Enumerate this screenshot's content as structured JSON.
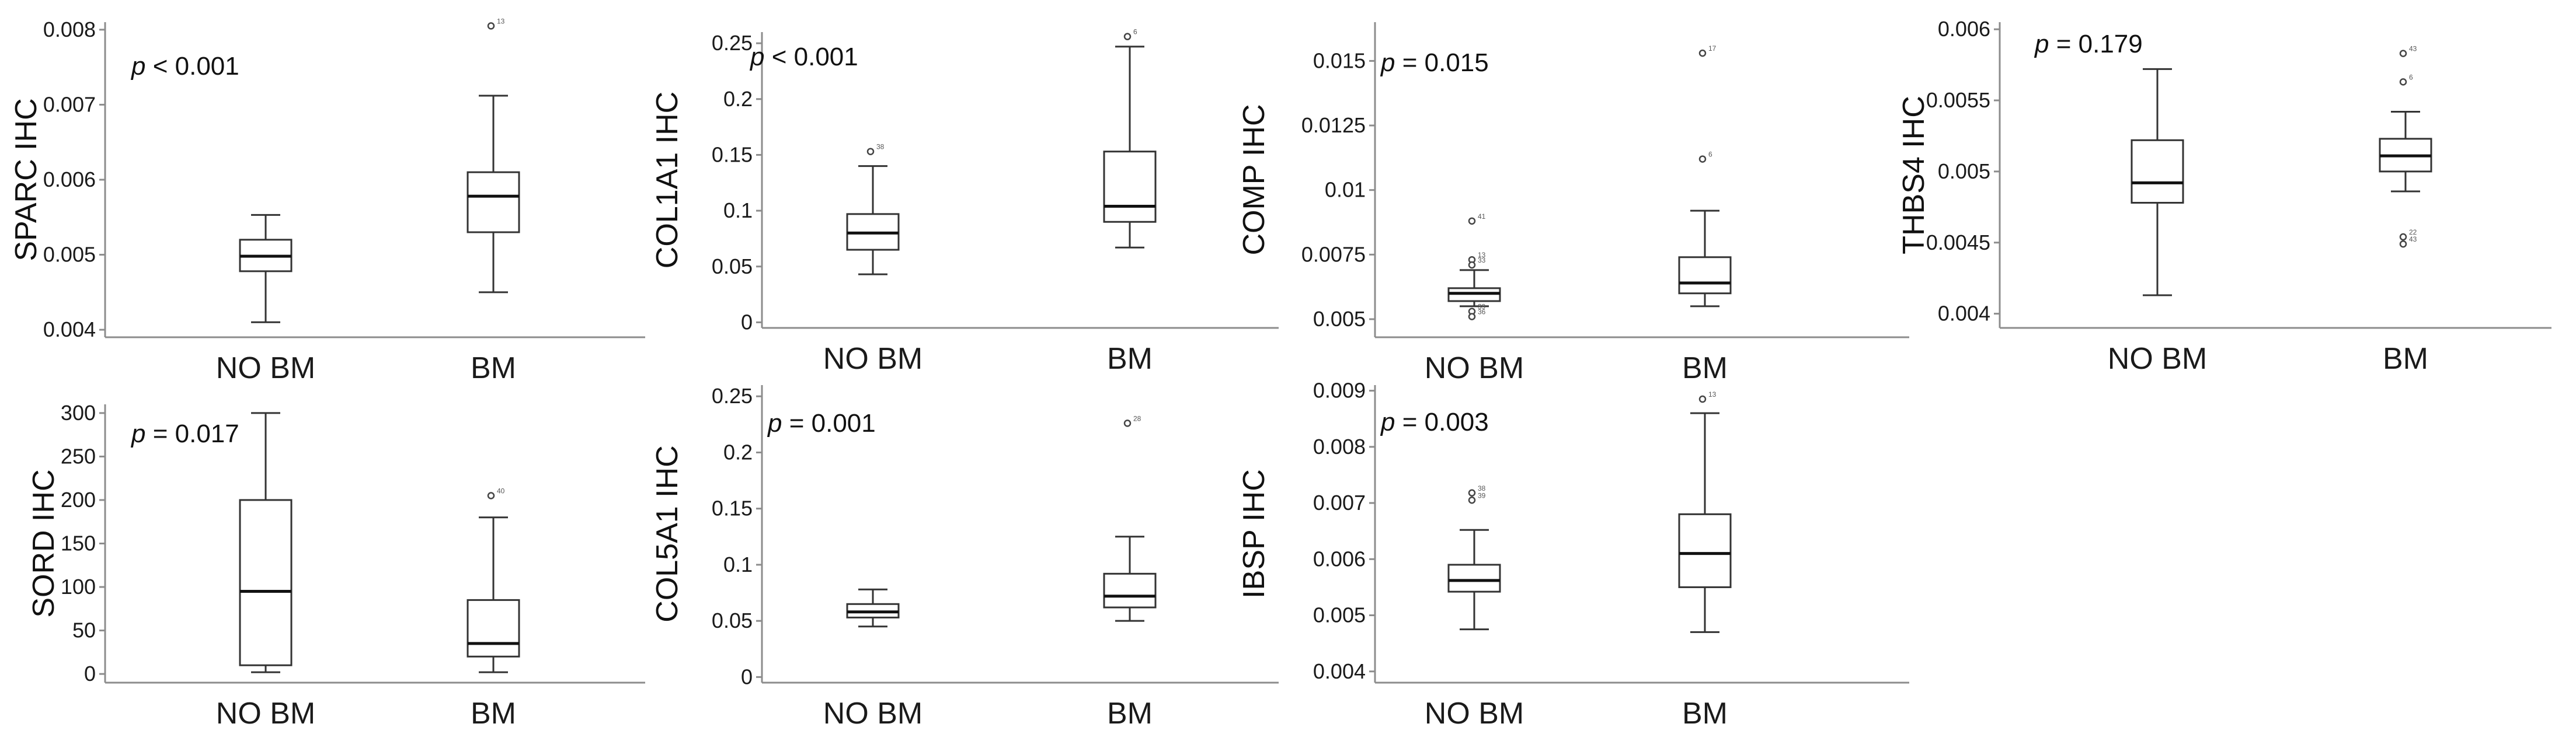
{
  "chart_data": [
    {
      "type": "box",
      "ylabel": "SPARC IHC",
      "p_value": "< 0.001",
      "categories": [
        "NO BM",
        "BM"
      ],
      "yticks": [
        "0.004",
        "0.005",
        "0.006",
        "0.007",
        "0.008"
      ],
      "ylim": [
        0.0039,
        0.0081
      ],
      "boxes": [
        {
          "category": "NO BM",
          "min": 0.0041,
          "q1": 0.00478,
          "median": 0.00498,
          "q3": 0.0052,
          "max": 0.00553,
          "outliers": []
        },
        {
          "category": "BM",
          "min": 0.0045,
          "q1": 0.0053,
          "median": 0.00578,
          "q3": 0.0061,
          "max": 0.00712,
          "outliers": [
            {
              "value": 0.00805,
              "id": "13"
            }
          ]
        }
      ]
    },
    {
      "type": "box",
      "ylabel": "COL1A1 IHC",
      "p_value": "< 0.001",
      "categories": [
        "NO BM",
        "BM"
      ],
      "yticks": [
        "0",
        "0.05",
        "0.1",
        "0.15",
        "0.2",
        "0.25"
      ],
      "ylim": [
        -0.005,
        0.26
      ],
      "boxes": [
        {
          "category": "NO BM",
          "min": 0.043,
          "q1": 0.065,
          "median": 0.08,
          "q3": 0.097,
          "max": 0.14,
          "outliers": [
            {
              "value": 0.153,
              "id": "38"
            }
          ]
        },
        {
          "category": "BM",
          "min": 0.067,
          "q1": 0.09,
          "median": 0.104,
          "q3": 0.153,
          "max": 0.247,
          "outliers": [
            {
              "value": 0.256,
              "id": "6"
            }
          ]
        }
      ]
    },
    {
      "type": "box",
      "ylabel": "COMP IHC",
      "p_value": "= 0.015",
      "categories": [
        "NO BM",
        "BM"
      ],
      "yticks": [
        "0.005",
        "0.0075",
        "0.01",
        "0.0125",
        "0.015"
      ],
      "ylim": [
        0.0043,
        0.0165
      ],
      "boxes": [
        {
          "category": "NO BM",
          "min": 0.0055,
          "q1": 0.0057,
          "median": 0.006,
          "q3": 0.0062,
          "max": 0.0069,
          "outliers": [
            {
              "value": 0.0088,
              "id": "41"
            },
            {
              "value": 0.0073,
              "id": "13"
            },
            {
              "value": 0.0071,
              "id": "33"
            },
            {
              "value": 0.0053,
              "id": "39"
            },
            {
              "value": 0.0051,
              "id": "36"
            }
          ]
        },
        {
          "category": "BM",
          "min": 0.0055,
          "q1": 0.006,
          "median": 0.0064,
          "q3": 0.0074,
          "max": 0.0092,
          "outliers": [
            {
              "value": 0.0153,
              "id": "17"
            },
            {
              "value": 0.0112,
              "id": "6"
            }
          ]
        }
      ]
    },
    {
      "type": "box",
      "ylabel": "THBS4 IHC",
      "p_value": "= 0.179",
      "categories": [
        "NO BM",
        "BM"
      ],
      "yticks": [
        "0.004",
        "0.0045",
        "0.005",
        "0.0055",
        "0.006"
      ],
      "ylim": [
        0.0039,
        0.00605
      ],
      "boxes": [
        {
          "category": "NO BM",
          "min": 0.00413,
          "q1": 0.00478,
          "median": 0.00492,
          "q3": 0.00522,
          "max": 0.00572,
          "outliers": []
        },
        {
          "category": "BM",
          "min": 0.00486,
          "q1": 0.005,
          "median": 0.00511,
          "q3": 0.00523,
          "max": 0.00542,
          "outliers": [
            {
              "value": 0.00583,
              "id": "43"
            },
            {
              "value": 0.00563,
              "id": "6"
            },
            {
              "value": 0.00454,
              "id": "22"
            },
            {
              "value": 0.00449,
              "id": "43"
            }
          ]
        }
      ]
    },
    {
      "type": "box",
      "ylabel": "SORD IHC",
      "p_value": "= 0.017",
      "categories": [
        "NO BM",
        "BM"
      ],
      "yticks": [
        "0",
        "50",
        "100",
        "150",
        "200",
        "250",
        "300"
      ],
      "ylim": [
        -10,
        310
      ],
      "boxes": [
        {
          "category": "NO BM",
          "min": 2,
          "q1": 10,
          "median": 95,
          "q3": 200,
          "max": 300,
          "outliers": []
        },
        {
          "category": "BM",
          "min": 2,
          "q1": 20,
          "median": 35,
          "q3": 85,
          "max": 180,
          "outliers": [
            {
              "value": 205,
              "id": "40"
            }
          ]
        }
      ]
    },
    {
      "type": "box",
      "ylabel": "COL5A1 IHC",
      "p_value": "= 0.001",
      "categories": [
        "NO BM",
        "BM"
      ],
      "yticks": [
        "0",
        "0.05",
        "0.1",
        "0.15",
        "0.2",
        "0.25"
      ],
      "ylim": [
        -0.005,
        0.26
      ],
      "boxes": [
        {
          "category": "NO BM",
          "min": 0.045,
          "q1": 0.053,
          "median": 0.058,
          "q3": 0.065,
          "max": 0.078,
          "outliers": []
        },
        {
          "category": "BM",
          "min": 0.05,
          "q1": 0.062,
          "median": 0.072,
          "q3": 0.092,
          "max": 0.125,
          "outliers": [
            {
              "value": 0.226,
              "id": "28"
            }
          ]
        }
      ]
    },
    {
      "type": "box",
      "ylabel": "IBSP IHC",
      "p_value": "= 0.003",
      "categories": [
        "NO BM",
        "BM"
      ],
      "yticks": [
        "0.004",
        "0.005",
        "0.006",
        "0.007",
        "0.008",
        "0.009"
      ],
      "ylim": [
        0.0038,
        0.0091
      ],
      "boxes": [
        {
          "category": "NO BM",
          "min": 0.00475,
          "q1": 0.00542,
          "median": 0.00562,
          "q3": 0.0059,
          "max": 0.00652,
          "outliers": [
            {
              "value": 0.00718,
              "id": "38"
            },
            {
              "value": 0.00705,
              "id": "39"
            }
          ]
        },
        {
          "category": "BM",
          "min": 0.0047,
          "q1": 0.0055,
          "median": 0.0061,
          "q3": 0.0068,
          "max": 0.0086,
          "outliers": [
            {
              "value": 0.00885,
              "id": "13"
            }
          ]
        }
      ]
    }
  ]
}
